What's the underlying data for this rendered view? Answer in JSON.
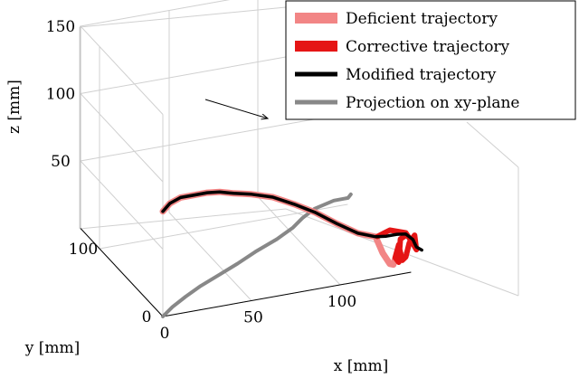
{
  "chart_data": {
    "type": "line",
    "projection": "3d",
    "title": "",
    "xlabel": "x [mm]",
    "ylabel": "y [mm]",
    "zlabel": "z [mm]",
    "xlim": [
      0,
      140
    ],
    "ylim": [
      0,
      130
    ],
    "zlim": [
      0,
      150
    ],
    "xticks": [
      0,
      50,
      100
    ],
    "yticks": [
      0,
      100
    ],
    "zticks": [
      50,
      100,
      150
    ],
    "grid": true,
    "legend_position": "top-right",
    "annotation": "direction arrow",
    "series": [
      {
        "name": "Deficient trajectory",
        "color": "#f28585",
        "points": [
          [
            0,
            0,
            78
          ],
          [
            4,
            0,
            83
          ],
          [
            10,
            0,
            86
          ],
          [
            18,
            0,
            86
          ],
          [
            25,
            0,
            86
          ],
          [
            32,
            0,
            85
          ],
          [
            40,
            0,
            82
          ],
          [
            50,
            0,
            79
          ],
          [
            62,
            0,
            74
          ],
          [
            74,
            0,
            66
          ],
          [
            86,
            0,
            57
          ],
          [
            98,
            0,
            46
          ],
          [
            110,
            0,
            36
          ],
          [
            120,
            0,
            31
          ],
          [
            124,
            0,
            18
          ],
          [
            128,
            0,
            9
          ],
          [
            130,
            0,
            8
          ],
          [
            131,
            0,
            12
          ]
        ]
      },
      {
        "name": "Corrective trajectory",
        "color": "#e51515",
        "points": [
          [
            121,
            0,
            31
          ],
          [
            128,
            0,
            34
          ],
          [
            137,
            0,
            30
          ],
          [
            141,
            0,
            21
          ],
          [
            143,
            0,
            16
          ],
          [
            142,
            0,
            27
          ],
          [
            139,
            0,
            22
          ],
          [
            137,
            0,
            12
          ],
          [
            135,
            0,
            10
          ],
          [
            133,
            0,
            22
          ],
          [
            131,
            0,
            13
          ],
          [
            133,
            0,
            9
          ],
          [
            134,
            0,
            26
          ],
          [
            137,
            0,
            28
          ]
        ]
      },
      {
        "name": "Modified trajectory",
        "color": "#000000",
        "points": [
          [
            0,
            0,
            78
          ],
          [
            4,
            0,
            83
          ],
          [
            10,
            0,
            86
          ],
          [
            18,
            0,
            86
          ],
          [
            25,
            0,
            86
          ],
          [
            32,
            0,
            85
          ],
          [
            40,
            0,
            82
          ],
          [
            50,
            0,
            79
          ],
          [
            62,
            0,
            74
          ],
          [
            74,
            0,
            66
          ],
          [
            86,
            0,
            57
          ],
          [
            98,
            0,
            46
          ],
          [
            110,
            0,
            36
          ],
          [
            120,
            0,
            31
          ],
          [
            126,
            0,
            30
          ],
          [
            132,
            0,
            30
          ],
          [
            137,
            0,
            29
          ],
          [
            141,
            0,
            24
          ],
          [
            143,
            0,
            18
          ],
          [
            146,
            0,
            15
          ]
        ]
      },
      {
        "name": "Projection on xy-plane",
        "color": "#888888",
        "points": [
          [
            0,
            0,
            0
          ],
          [
            9,
            10,
            0
          ],
          [
            20,
            20,
            0
          ],
          [
            32,
            30,
            0
          ],
          [
            46,
            40,
            0
          ],
          [
            60,
            50,
            0
          ],
          [
            74,
            61,
            0
          ],
          [
            90,
            72,
            0
          ],
          [
            103,
            83,
            0
          ],
          [
            112,
            93,
            0
          ],
          [
            122,
            102,
            0
          ],
          [
            135,
            108,
            0
          ],
          [
            143,
            108,
            0
          ],
          [
            146,
            112,
            0
          ]
        ]
      }
    ]
  }
}
